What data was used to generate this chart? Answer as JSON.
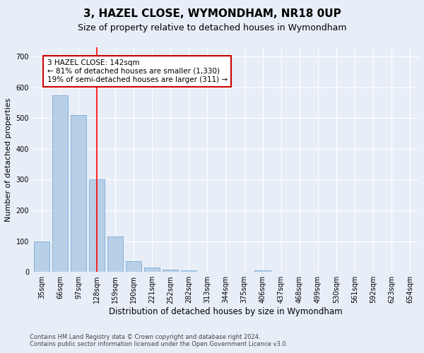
{
  "title": "3, HAZEL CLOSE, WYMONDHAM, NR18 0UP",
  "subtitle": "Size of property relative to detached houses in Wymondham",
  "xlabel": "Distribution of detached houses by size in Wymondham",
  "ylabel": "Number of detached properties",
  "categories": [
    "35sqm",
    "66sqm",
    "97sqm",
    "128sqm",
    "159sqm",
    "190sqm",
    "221sqm",
    "252sqm",
    "282sqm",
    "313sqm",
    "344sqm",
    "375sqm",
    "406sqm",
    "437sqm",
    "468sqm",
    "499sqm",
    "530sqm",
    "561sqm",
    "592sqm",
    "623sqm",
    "654sqm"
  ],
  "values": [
    100,
    575,
    510,
    300,
    115,
    35,
    15,
    8,
    5,
    0,
    0,
    0,
    5,
    0,
    0,
    0,
    0,
    0,
    0,
    0,
    0
  ],
  "bar_color": "#b8cfe8",
  "bar_edge_color": "#6a9fd0",
  "red_line_index": 3,
  "annotation_line1": "3 HAZEL CLOSE: 142sqm",
  "annotation_line2": "← 81% of detached houses are smaller (1,330)",
  "annotation_line3": "19% of semi-detached houses are larger (311) →",
  "annotation_box_facecolor": "#ffffff",
  "annotation_box_edgecolor": "#cc0000",
  "ylim": [
    0,
    730
  ],
  "yticks": [
    0,
    100,
    200,
    300,
    400,
    500,
    600,
    700
  ],
  "fig_facecolor": "#e8eef7",
  "plot_facecolor": "#e8eef7",
  "grid_color": "#ffffff",
  "footer1": "Contains HM Land Registry data © Crown copyright and database right 2024.",
  "footer2": "Contains public sector information licensed under the Open Government Licence v3.0.",
  "title_fontsize": 11,
  "subtitle_fontsize": 9,
  "xlabel_fontsize": 8.5,
  "ylabel_fontsize": 8,
  "tick_fontsize": 7,
  "annotation_fontsize": 7.5,
  "footer_fontsize": 6
}
